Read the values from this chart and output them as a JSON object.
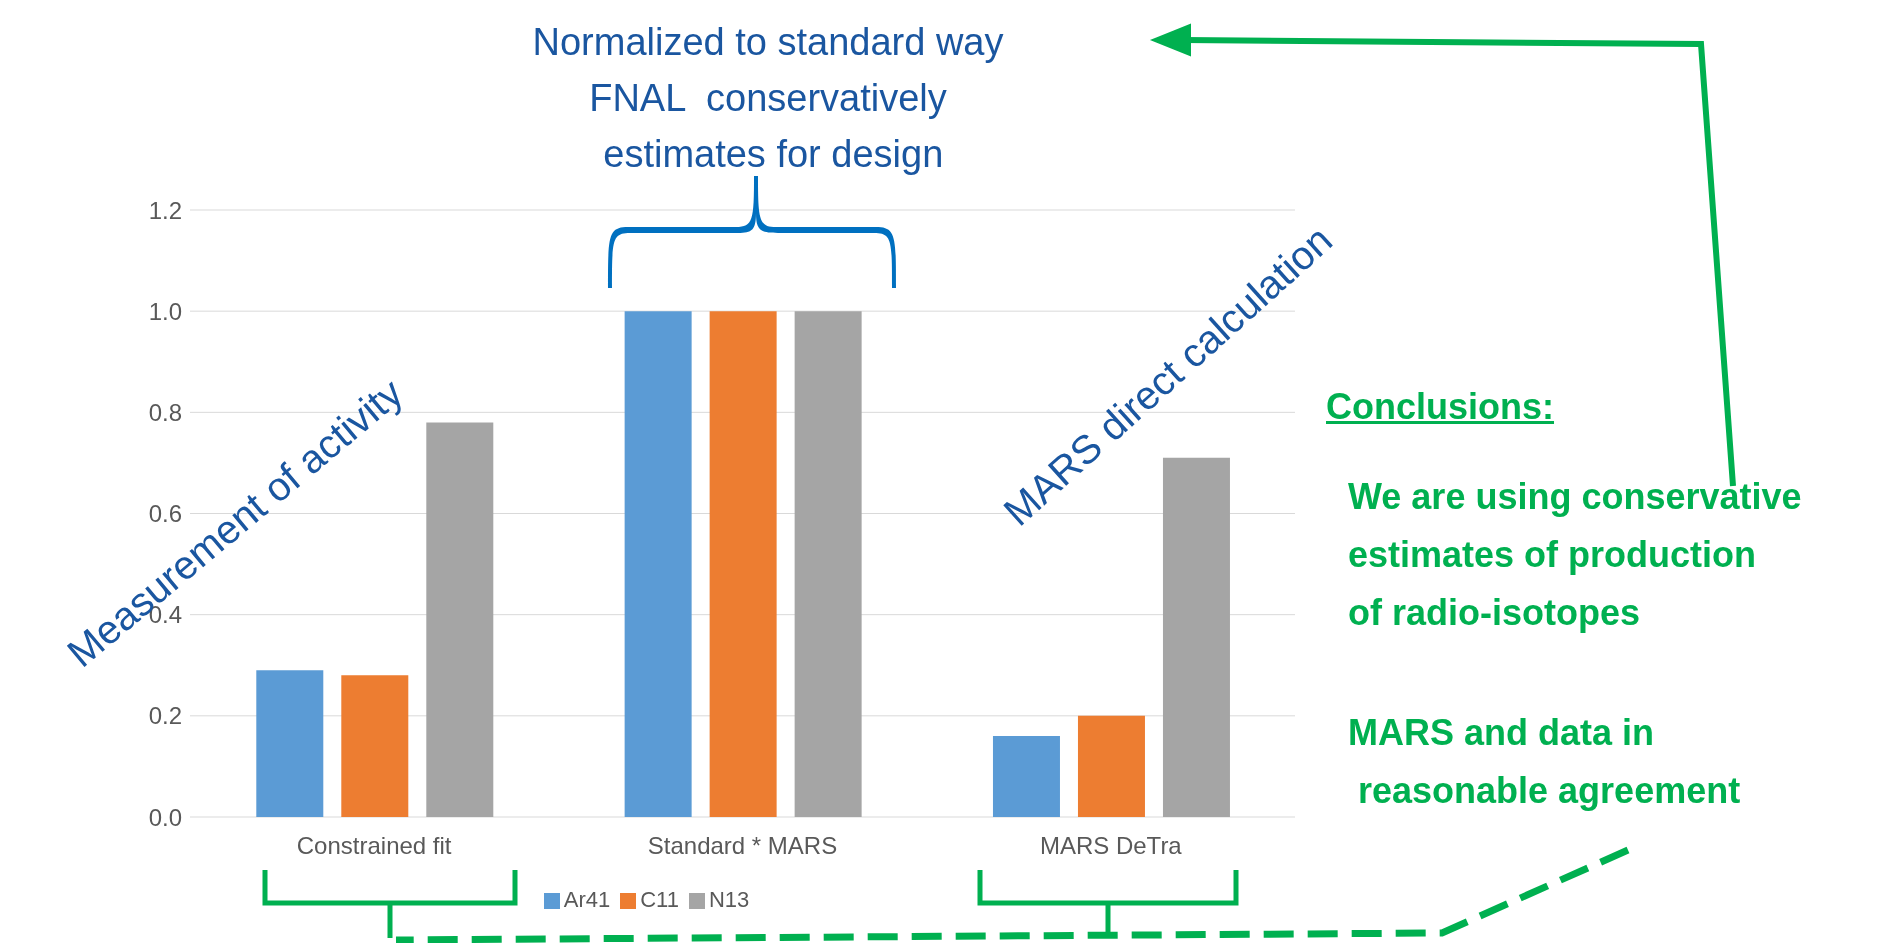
{
  "chart_data": {
    "type": "bar",
    "categories": [
      "Constrained fit",
      "Standard * MARS",
      "MARS DeTra"
    ],
    "series": [
      {
        "name": "Ar41",
        "color": "#5b9bd5",
        "values": [
          0.29,
          1.0,
          0.16
        ]
      },
      {
        "name": "C11",
        "color": "#ed7d31",
        "values": [
          0.28,
          1.0,
          0.2
        ]
      },
      {
        "name": "N13",
        "color": "#a5a5a5",
        "values": [
          0.78,
          1.0,
          0.71
        ]
      }
    ],
    "ylim": [
      0,
      1.2
    ],
    "yticks": [
      {
        "value": 0,
        "label": "0.0"
      },
      {
        "value": 0.2,
        "label": "0.2"
      },
      {
        "value": 0.4,
        "label": "0.4"
      },
      {
        "value": 0.6,
        "label": "0.6"
      },
      {
        "value": 0.8,
        "label": "0.8"
      },
      {
        "value": 1,
        "label": "1.0"
      },
      {
        "value": 1.2,
        "label": "1.2"
      }
    ],
    "grid": "y",
    "legend": "bottom",
    "annotations": [
      "Normalized to standard way\nFNAL  conservatively\n estimates for design",
      "Measurement of activity",
      "MARS direct calculation",
      "Conclusions:",
      "We are using conservative\nestimates of production\nof radio-isotopes",
      "MARS and data in\n reasonable agreement"
    ]
  }
}
